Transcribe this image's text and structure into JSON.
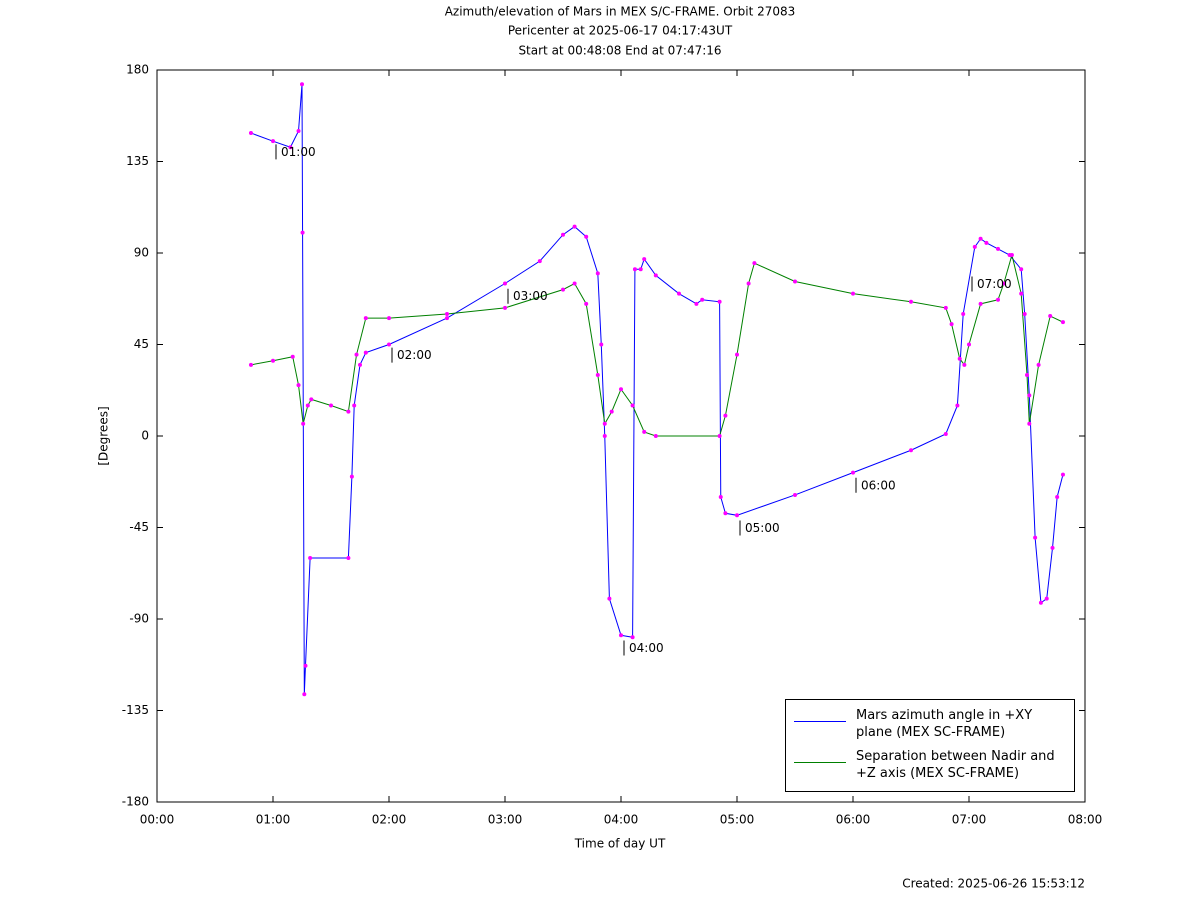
{
  "chart_data": {
    "type": "line",
    "title": "Azimuth/elevation of Mars in MEX S/C-FRAME.  Orbit 27083",
    "subtitle": [
      "Pericenter at 2025-06-17 04:17:43UT",
      "Start at 00:48:08 End at 07:47:16"
    ],
    "xlabel": "Time of day UT",
    "ylabel": "[Degrees]",
    "footnote": "Created: 2025-06-26 15:53:12",
    "xlim": [
      0,
      8
    ],
    "ylim": [
      -180,
      180
    ],
    "xticks": [
      {
        "value": 0,
        "label": "00:00"
      },
      {
        "value": 1,
        "label": "01:00"
      },
      {
        "value": 2,
        "label": "02:00"
      },
      {
        "value": 3,
        "label": "03:00"
      },
      {
        "value": 4,
        "label": "04:00"
      },
      {
        "value": 5,
        "label": "05:00"
      },
      {
        "value": 6,
        "label": "06:00"
      },
      {
        "value": 7,
        "label": "07:00"
      },
      {
        "value": 8,
        "label": "08:00"
      }
    ],
    "yticks": [
      180,
      135,
      90,
      45,
      0,
      -45,
      -90,
      -135,
      -180
    ],
    "legend": "lower right",
    "marker_color": "#ff00ff",
    "series": [
      {
        "name": "Mars azimuth angle in +XY plane (MEX SC-FRAME)",
        "color": "#0000ff",
        "x": [
          0.81,
          1.0,
          1.15,
          1.22,
          1.25,
          1.255,
          1.27,
          1.28,
          1.32,
          1.65,
          1.68,
          1.7,
          1.75,
          1.8,
          2.0,
          2.5,
          3.0,
          3.3,
          3.5,
          3.6,
          3.7,
          3.8,
          3.83,
          3.86,
          3.9,
          4.0,
          4.1,
          4.12,
          4.17,
          4.2,
          4.3,
          4.5,
          4.65,
          4.7,
          4.85,
          4.86,
          4.9,
          5.0,
          5.5,
          6.0,
          6.5,
          6.8,
          6.9,
          6.95,
          7.05,
          7.1,
          7.15,
          7.25,
          7.35,
          7.45,
          7.48,
          7.52,
          7.57,
          7.62,
          7.67,
          7.72,
          7.76,
          7.81
        ],
        "values": [
          149,
          145,
          142,
          150,
          173,
          100,
          -127,
          -113,
          -60,
          -60,
          -20,
          15,
          35,
          41,
          45,
          58,
          75,
          86,
          99,
          103,
          98,
          80,
          45,
          0,
          -80,
          -98,
          -99,
          82,
          82,
          87,
          79,
          70,
          65,
          67,
          66,
          -30,
          -38,
          -39,
          -29,
          -18,
          -7,
          1,
          15,
          60,
          93,
          97,
          95,
          92,
          89,
          82,
          60,
          20,
          -50,
          -82,
          -80,
          -55,
          -30,
          -19
        ]
      },
      {
        "name": "Separation between Nadir and +Z axis (MEX SC-FRAME)",
        "color": "#008000",
        "x": [
          0.81,
          1.0,
          1.17,
          1.22,
          1.26,
          1.3,
          1.33,
          1.5,
          1.65,
          1.72,
          1.8,
          2.0,
          2.5,
          3.0,
          3.5,
          3.6,
          3.7,
          3.8,
          3.86,
          3.92,
          4.0,
          4.1,
          4.2,
          4.3,
          4.85,
          4.9,
          5.0,
          5.1,
          5.15,
          5.5,
          6.0,
          6.5,
          6.8,
          6.85,
          6.92,
          6.96,
          7.0,
          7.1,
          7.25,
          7.3,
          7.37,
          7.45,
          7.5,
          7.52,
          7.6,
          7.7,
          7.81
        ],
        "values": [
          35,
          37,
          39,
          25,
          6,
          15,
          18,
          15,
          12,
          40,
          58,
          58,
          60,
          63,
          72,
          75,
          65,
          30,
          6,
          12,
          23,
          15,
          2,
          0,
          0,
          10,
          40,
          75,
          85,
          76,
          70,
          66,
          63,
          55,
          38,
          35,
          45,
          65,
          67,
          75,
          89,
          70,
          30,
          6,
          35,
          59,
          56
        ]
      }
    ],
    "annotations": [
      {
        "text": "01:00",
        "x": 1.0,
        "y": 140
      },
      {
        "text": "02:00",
        "x": 2.0,
        "y": 40
      },
      {
        "text": "03:00",
        "x": 3.0,
        "y": 69
      },
      {
        "text": "04:00",
        "x": 4.0,
        "y": -104
      },
      {
        "text": "05:00",
        "x": 5.0,
        "y": -45
      },
      {
        "text": "06:00",
        "x": 6.0,
        "y": -24
      },
      {
        "text": "07:00",
        "x": 7.0,
        "y": 75
      }
    ]
  }
}
